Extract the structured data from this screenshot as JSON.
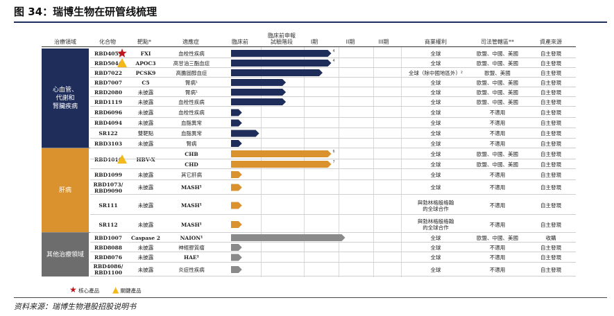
{
  "title": "图 34：瑞博生物在研管线梳理",
  "footer": "资料来源：瑞博生物港股招股说明书",
  "headers": {
    "area": "治療領域",
    "compound": "化合物",
    "target": "靶點*",
    "indication": "適應症",
    "preclinical": "臨床前",
    "ind": "臨床前申報\n試驗階段",
    "p1": "I期",
    "p2": "II期",
    "p3": "III期",
    "rights": "商業權利",
    "regulatory": "司法管轄區**",
    "source": "資產來源"
  },
  "groups": [
    {
      "label": "心血管、\n代謝和\n腎臟疾病",
      "color": "#1f2d5a"
    },
    {
      "label": "肝病",
      "color": "#d9922e"
    },
    {
      "label": "其他治療領域",
      "color": "#6d6d6d"
    }
  ],
  "legend": {
    "core": "核心產品",
    "key": "關鍵產品"
  },
  "chart_data": {
    "type": "table",
    "stages": [
      "臨床前",
      "臨床前申報試驗階段",
      "I期",
      "II期",
      "III期"
    ],
    "rows": [
      {
        "compound": "RBD4059",
        "target": "FXI",
        "indication": "血栓性疾病",
        "stage": 2.75,
        "group": 0,
        "marker": "star",
        "rights": "全球",
        "regulatory": "歐盟、中國、美國",
        "source": "自主發現",
        "note": "4"
      },
      {
        "compound": "RBD5044",
        "target": "APOC3",
        "indication": "高甘油三酯血症",
        "stage": 2.75,
        "group": 0,
        "marker": "triangle",
        "rights": "全球",
        "regulatory": "歐盟、中國、美國",
        "source": "自主發現",
        "note": "4"
      },
      {
        "compound": "RBD7022",
        "target": "PCSK9",
        "indication": "高膽固醇血症",
        "stage": 2.5,
        "group": 0,
        "rights": "全球（除中國地區外）²",
        "regulatory": "歐盟、美國",
        "source": "自主發現"
      },
      {
        "compound": "RBD7007",
        "target": "C5",
        "indication": "腎病¹",
        "stage": 1.55,
        "group": 0,
        "rights": "全球",
        "regulatory": "歐盟、中國、美國",
        "source": "自主發現"
      },
      {
        "compound": "RBD2080",
        "target": "未披露",
        "indication": "腎病¹",
        "stage": 1.55,
        "group": 0,
        "rights": "全球",
        "regulatory": "歐盟、中國、美國",
        "source": "自主發現"
      },
      {
        "compound": "RBD1119",
        "target": "未披露",
        "indication": "血栓性疾病",
        "stage": 1.55,
        "group": 0,
        "rights": "全球",
        "regulatory": "歐盟、中國、美國",
        "source": "自主發現"
      },
      {
        "compound": "RBD6096",
        "target": "未披露",
        "indication": "血栓性疾病",
        "stage": 0.35,
        "group": 0,
        "rights": "全球",
        "regulatory": "不適用",
        "source": "自主發現"
      },
      {
        "compound": "RBD4094",
        "target": "未披露",
        "indication": "血脂異常",
        "stage": 0.35,
        "group": 0,
        "rights": "全球",
        "regulatory": "不適用",
        "source": "自主發現"
      },
      {
        "compound": "SR122",
        "target": "雙靶點",
        "indication": "血脂異常",
        "stage": 0.9,
        "group": 0,
        "rights": "全球",
        "regulatory": "不適用",
        "source": "自主發現"
      },
      {
        "compound": "RBD3103",
        "target": "未披露",
        "indication": "腎病",
        "stage": 0.35,
        "group": 0,
        "rights": "全球",
        "regulatory": "不適用",
        "source": "自主發現"
      },
      {
        "compound": "RBD1016",
        "target": "HBV-X",
        "indication": "CHB",
        "stage": 2.75,
        "group": 1,
        "marker": "triangle",
        "rights": "全球",
        "regulatory": "歐盟、中國、美國",
        "source": "自主發現",
        "note": "6"
      },
      {
        "compound": "",
        "target": "",
        "indication": "CHD",
        "stage": 2.75,
        "group": 1,
        "rights": "全球",
        "regulatory": "歐盟、中國、美國",
        "source": "自主發現",
        "note": "7"
      },
      {
        "compound": "RBD1099",
        "target": "未披露",
        "indication": "其它肝病",
        "stage": 0.35,
        "group": 1,
        "rights": "全球",
        "regulatory": "不適用",
        "source": "自主發現"
      },
      {
        "compound": "RBD1073/\nRBD9090",
        "target": "未披露",
        "indication": "MASH¹",
        "stage": 0.35,
        "group": 1,
        "rights": "全球",
        "regulatory": "不適用",
        "source": "自主發現"
      },
      {
        "compound": "SR111",
        "target": "未披露",
        "indication": "MASH¹",
        "stage": 0.35,
        "group": 1,
        "rights": "與勃林格殷格翰\n的全球合作",
        "regulatory": "不適用",
        "source": "自主發現"
      },
      {
        "compound": "SR112",
        "target": "未披露",
        "indication": "MASH¹",
        "stage": 0.35,
        "group": 1,
        "rights": "與勃林格殷格翰\n的全球合作",
        "regulatory": "不適用",
        "source": "自主發現"
      },
      {
        "compound": "RBD1007",
        "target": "Caspase 2",
        "indication": "NAION¹",
        "stage": 3.15,
        "group": 2,
        "rights": "全球",
        "regulatory": "歐盟、中國、美國",
        "source": "收購"
      },
      {
        "compound": "RBD8088",
        "target": "未披露",
        "indication": "神經膠質瘤",
        "stage": 0.35,
        "group": 2,
        "rights": "全球",
        "regulatory": "不適用",
        "source": "自主發現"
      },
      {
        "compound": "RBD8076",
        "target": "未披露",
        "indication": "HAE¹",
        "stage": 0.35,
        "group": 2,
        "rights": "全球",
        "regulatory": "不適用",
        "source": "自主發現"
      },
      {
        "compound": "RBD4086/\nRBD1100",
        "target": "未披露",
        "indication": "炎症性疾病",
        "stage": 0.35,
        "group": 2,
        "rights": "全球",
        "regulatory": "不適用",
        "source": "自主發現"
      }
    ]
  }
}
